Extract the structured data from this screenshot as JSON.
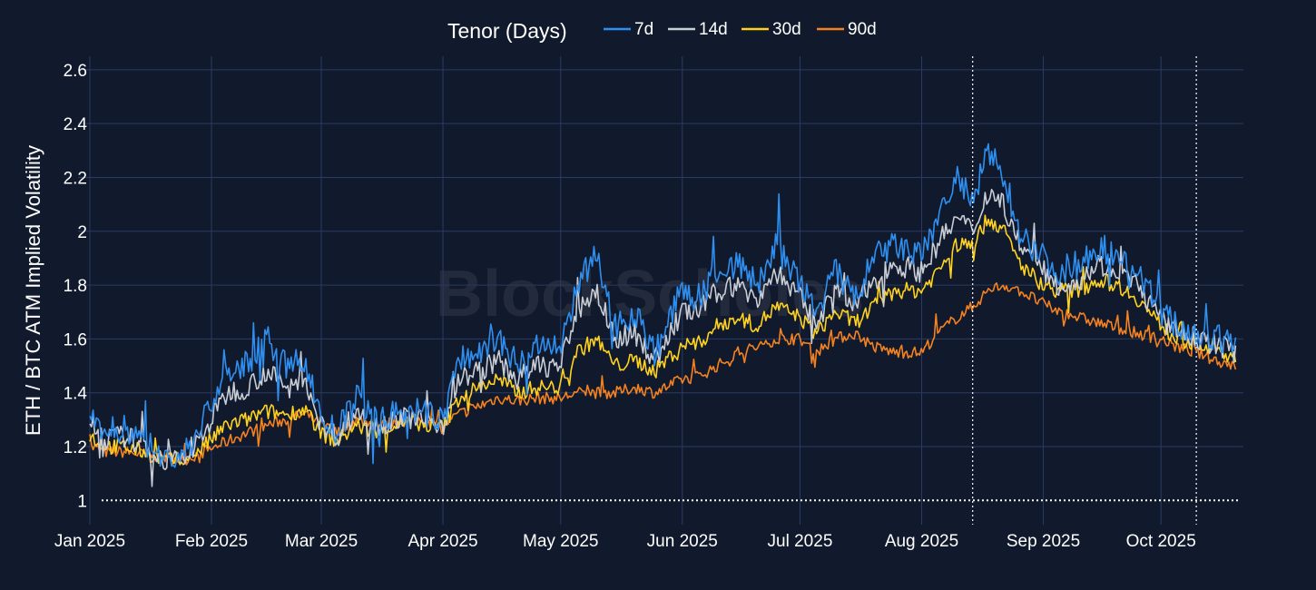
{
  "colors": {
    "background": "#111a2c",
    "grid": "#2a3b63",
    "text": "#ffffff"
  },
  "watermark": "BlockScholes",
  "chart_data": {
    "type": "line",
    "title": "",
    "xlabel": "",
    "ylabel": "ETH / BTC ATM Implied Volatility",
    "ylim": [
      0.91,
      2.65
    ],
    "xlim": [
      "2024-12-29",
      "2025-10-22"
    ],
    "y_ticks": [
      1,
      1.2,
      1.4,
      1.6,
      1.8,
      2,
      2.2,
      2.4,
      2.6
    ],
    "y_tick_labels": [
      "1",
      "1.2",
      "1.4",
      "1.6",
      "1.8",
      "2",
      "2.2",
      "2.4",
      "2.6"
    ],
    "x_ticks": [
      {
        "date": "2025-01-01",
        "label": "Jan 2025"
      },
      {
        "date": "2025-02-01",
        "label": "Feb 2025"
      },
      {
        "date": "2025-03-01",
        "label": "Mar 2025"
      },
      {
        "date": "2025-04-01",
        "label": "Apr 2025"
      },
      {
        "date": "2025-05-01",
        "label": "May 2025"
      },
      {
        "date": "2025-06-01",
        "label": "Jun 2025"
      },
      {
        "date": "2025-07-01",
        "label": "Jul 2025"
      },
      {
        "date": "2025-08-01",
        "label": "Aug 2025"
      },
      {
        "date": "2025-09-01",
        "label": "Sep 2025"
      },
      {
        "date": "2025-10-01",
        "label": "Oct 2025"
      }
    ],
    "reference_lines": [
      {
        "axis": "y",
        "value": 1,
        "style": "dotted"
      },
      {
        "axis": "x",
        "value": "2025-08-14",
        "style": "dotted"
      },
      {
        "axis": "x",
        "value": "2025-10-10",
        "style": "dotted"
      }
    ],
    "legend": {
      "title": "Tenor (Days)",
      "placement": "top-center"
    },
    "series": [
      {
        "name": "7d",
        "color": "#2e8ff0",
        "x": [
          "2025-01-01",
          "2025-01-05",
          "2025-01-10",
          "2025-01-15",
          "2025-01-20",
          "2025-01-25",
          "2025-01-30",
          "2025-02-05",
          "2025-02-10",
          "2025-02-15",
          "2025-02-20",
          "2025-02-25",
          "2025-03-01",
          "2025-03-05",
          "2025-03-10",
          "2025-03-15",
          "2025-03-20",
          "2025-03-25",
          "2025-04-01",
          "2025-04-05",
          "2025-04-10",
          "2025-04-15",
          "2025-04-20",
          "2025-04-25",
          "2025-05-01",
          "2025-05-05",
          "2025-05-10",
          "2025-05-15",
          "2025-05-20",
          "2025-05-25",
          "2025-06-01",
          "2025-06-05",
          "2025-06-10",
          "2025-06-15",
          "2025-06-20",
          "2025-06-25",
          "2025-07-01",
          "2025-07-05",
          "2025-07-10",
          "2025-07-15",
          "2025-07-20",
          "2025-07-25",
          "2025-08-01",
          "2025-08-05",
          "2025-08-10",
          "2025-08-14",
          "2025-08-18",
          "2025-08-22",
          "2025-08-26",
          "2025-09-01",
          "2025-09-05",
          "2025-09-10",
          "2025-09-15",
          "2025-09-20",
          "2025-09-25",
          "2025-10-01",
          "2025-10-05",
          "2025-10-10",
          "2025-10-15",
          "2025-10-20"
        ],
        "values": [
          1.35,
          1.25,
          1.27,
          1.22,
          1.15,
          1.17,
          1.3,
          1.48,
          1.5,
          1.6,
          1.5,
          1.52,
          1.3,
          1.25,
          1.38,
          1.3,
          1.32,
          1.33,
          1.3,
          1.52,
          1.55,
          1.6,
          1.5,
          1.58,
          1.55,
          1.8,
          1.9,
          1.65,
          1.7,
          1.55,
          1.78,
          1.75,
          1.85,
          1.88,
          1.8,
          1.95,
          1.8,
          1.7,
          1.85,
          1.75,
          1.9,
          1.95,
          1.9,
          2.05,
          2.2,
          2.1,
          2.3,
          2.2,
          2.0,
          1.9,
          1.85,
          1.88,
          1.95,
          1.9,
          1.85,
          1.7,
          1.65,
          1.62,
          1.6,
          1.58
        ]
      },
      {
        "name": "14d",
        "color": "#c8cdd6",
        "x": [
          "2025-01-01",
          "2025-01-05",
          "2025-01-10",
          "2025-01-15",
          "2025-01-20",
          "2025-01-25",
          "2025-01-30",
          "2025-02-05",
          "2025-02-10",
          "2025-02-15",
          "2025-02-20",
          "2025-02-25",
          "2025-03-01",
          "2025-03-05",
          "2025-03-10",
          "2025-03-15",
          "2025-03-20",
          "2025-03-25",
          "2025-04-01",
          "2025-04-05",
          "2025-04-10",
          "2025-04-15",
          "2025-04-20",
          "2025-04-25",
          "2025-05-01",
          "2025-05-05",
          "2025-05-10",
          "2025-05-15",
          "2025-05-20",
          "2025-05-25",
          "2025-06-01",
          "2025-06-05",
          "2025-06-10",
          "2025-06-15",
          "2025-06-20",
          "2025-06-25",
          "2025-07-01",
          "2025-07-05",
          "2025-07-10",
          "2025-07-15",
          "2025-07-20",
          "2025-07-25",
          "2025-08-01",
          "2025-08-05",
          "2025-08-10",
          "2025-08-14",
          "2025-08-18",
          "2025-08-22",
          "2025-08-26",
          "2025-09-01",
          "2025-09-05",
          "2025-09-10",
          "2025-09-15",
          "2025-09-20",
          "2025-09-25",
          "2025-10-01",
          "2025-10-05",
          "2025-10-10",
          "2025-10-15",
          "2025-10-20"
        ],
        "values": [
          1.3,
          1.23,
          1.24,
          1.2,
          1.15,
          1.15,
          1.25,
          1.4,
          1.42,
          1.48,
          1.42,
          1.45,
          1.28,
          1.24,
          1.33,
          1.28,
          1.3,
          1.31,
          1.28,
          1.45,
          1.48,
          1.52,
          1.45,
          1.5,
          1.5,
          1.7,
          1.78,
          1.6,
          1.62,
          1.52,
          1.7,
          1.7,
          1.78,
          1.8,
          1.75,
          1.85,
          1.75,
          1.66,
          1.78,
          1.72,
          1.82,
          1.88,
          1.85,
          1.95,
          2.05,
          2.0,
          2.15,
          2.1,
          1.95,
          1.85,
          1.8,
          1.82,
          1.88,
          1.85,
          1.8,
          1.67,
          1.63,
          1.6,
          1.58,
          1.55
        ]
      },
      {
        "name": "30d",
        "color": "#ffd21f",
        "x": [
          "2025-01-01",
          "2025-01-05",
          "2025-01-10",
          "2025-01-15",
          "2025-01-20",
          "2025-01-25",
          "2025-01-30",
          "2025-02-05",
          "2025-02-10",
          "2025-02-15",
          "2025-02-20",
          "2025-02-25",
          "2025-03-01",
          "2025-03-05",
          "2025-03-10",
          "2025-03-15",
          "2025-03-20",
          "2025-03-25",
          "2025-04-01",
          "2025-04-05",
          "2025-04-10",
          "2025-04-15",
          "2025-04-20",
          "2025-04-25",
          "2025-05-01",
          "2025-05-05",
          "2025-05-10",
          "2025-05-15",
          "2025-05-20",
          "2025-05-25",
          "2025-06-01",
          "2025-06-05",
          "2025-06-10",
          "2025-06-15",
          "2025-06-20",
          "2025-06-25",
          "2025-07-01",
          "2025-07-05",
          "2025-07-10",
          "2025-07-15",
          "2025-07-20",
          "2025-07-25",
          "2025-08-01",
          "2025-08-05",
          "2025-08-10",
          "2025-08-14",
          "2025-08-18",
          "2025-08-22",
          "2025-08-26",
          "2025-09-01",
          "2025-09-05",
          "2025-09-10",
          "2025-09-15",
          "2025-09-20",
          "2025-09-25",
          "2025-10-01",
          "2025-10-05",
          "2025-10-10",
          "2025-10-15",
          "2025-10-20"
        ],
        "values": [
          1.24,
          1.2,
          1.2,
          1.18,
          1.15,
          1.15,
          1.2,
          1.28,
          1.3,
          1.33,
          1.32,
          1.34,
          1.25,
          1.22,
          1.28,
          1.25,
          1.28,
          1.29,
          1.27,
          1.38,
          1.42,
          1.45,
          1.4,
          1.42,
          1.42,
          1.55,
          1.6,
          1.5,
          1.52,
          1.48,
          1.58,
          1.58,
          1.65,
          1.68,
          1.65,
          1.72,
          1.68,
          1.62,
          1.7,
          1.66,
          1.72,
          1.78,
          1.78,
          1.85,
          1.95,
          1.95,
          2.05,
          2.0,
          1.88,
          1.8,
          1.78,
          1.78,
          1.82,
          1.8,
          1.75,
          1.65,
          1.6,
          1.58,
          1.56,
          1.52
        ]
      },
      {
        "name": "90d",
        "color": "#f58220",
        "x": [
          "2025-01-01",
          "2025-01-05",
          "2025-01-10",
          "2025-01-15",
          "2025-01-20",
          "2025-01-25",
          "2025-01-30",
          "2025-02-05",
          "2025-02-10",
          "2025-02-15",
          "2025-02-20",
          "2025-02-25",
          "2025-03-01",
          "2025-03-05",
          "2025-03-10",
          "2025-03-15",
          "2025-03-20",
          "2025-03-25",
          "2025-04-01",
          "2025-04-05",
          "2025-04-10",
          "2025-04-15",
          "2025-04-20",
          "2025-04-25",
          "2025-05-01",
          "2025-05-05",
          "2025-05-10",
          "2025-05-15",
          "2025-05-20",
          "2025-05-25",
          "2025-06-01",
          "2025-06-05",
          "2025-06-10",
          "2025-06-15",
          "2025-06-20",
          "2025-06-25",
          "2025-07-01",
          "2025-07-05",
          "2025-07-10",
          "2025-07-15",
          "2025-07-20",
          "2025-07-25",
          "2025-08-01",
          "2025-08-05",
          "2025-08-10",
          "2025-08-14",
          "2025-08-18",
          "2025-08-22",
          "2025-08-26",
          "2025-09-01",
          "2025-09-05",
          "2025-09-10",
          "2025-09-15",
          "2025-09-20",
          "2025-09-25",
          "2025-10-01",
          "2025-10-05",
          "2025-10-10",
          "2025-10-15",
          "2025-10-20"
        ],
        "values": [
          1.2,
          1.18,
          1.18,
          1.17,
          1.16,
          1.15,
          1.18,
          1.22,
          1.25,
          1.28,
          1.3,
          1.32,
          1.28,
          1.25,
          1.3,
          1.28,
          1.29,
          1.3,
          1.28,
          1.32,
          1.35,
          1.38,
          1.37,
          1.38,
          1.38,
          1.4,
          1.4,
          1.4,
          1.42,
          1.4,
          1.45,
          1.46,
          1.5,
          1.55,
          1.57,
          1.6,
          1.6,
          1.55,
          1.6,
          1.62,
          1.57,
          1.55,
          1.55,
          1.62,
          1.68,
          1.72,
          1.78,
          1.8,
          1.78,
          1.73,
          1.7,
          1.68,
          1.66,
          1.64,
          1.62,
          1.6,
          1.57,
          1.55,
          1.52,
          1.5
        ]
      }
    ]
  }
}
